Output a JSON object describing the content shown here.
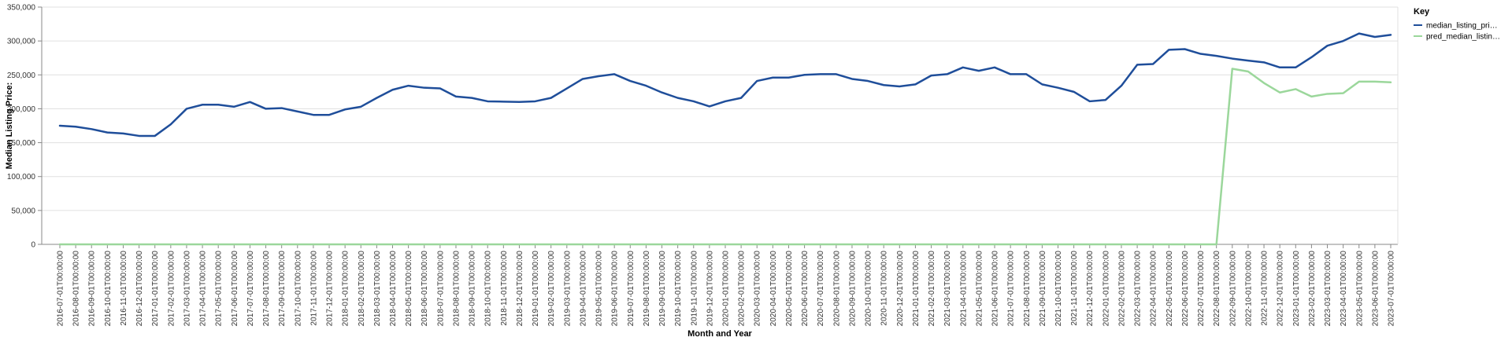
{
  "chart_data": {
    "type": "line",
    "xlabel": "Month and Year",
    "ylabel": "Median Listing Price:",
    "ylim": [
      0,
      350000
    ],
    "yticks": [
      "0",
      "50,000",
      "100,000",
      "150,000",
      "200,000",
      "250,000",
      "300,000",
      "350,000"
    ],
    "ytick_values": [
      0,
      50000,
      100000,
      150000,
      200000,
      250000,
      300000,
      350000
    ],
    "grid": true,
    "legend": {
      "title": "Key",
      "placement": "top-right",
      "entries": [
        "median_listing_pri…",
        "pred_median_listin…"
      ]
    },
    "x": [
      "2016-07-01T00:00:00",
      "2016-08-01T00:00:00",
      "2016-09-01T00:00:00",
      "2016-10-01T00:00:00",
      "2016-11-01T00:00:00",
      "2016-12-01T00:00:00",
      "2017-01-01T00:00:00",
      "2017-02-01T00:00:00",
      "2017-03-01T00:00:00",
      "2017-04-01T00:00:00",
      "2017-05-01T00:00:00",
      "2017-06-01T00:00:00",
      "2017-07-01T00:00:00",
      "2017-08-01T00:00:00",
      "2017-09-01T00:00:00",
      "2017-10-01T00:00:00",
      "2017-11-01T00:00:00",
      "2017-12-01T00:00:00",
      "2018-01-01T00:00:00",
      "2018-02-01T00:00:00",
      "2018-03-01T00:00:00",
      "2018-04-01T00:00:00",
      "2018-05-01T00:00:00",
      "2018-06-01T00:00:00",
      "2018-07-01T00:00:00",
      "2018-08-01T00:00:00",
      "2018-09-01T00:00:00",
      "2018-10-01T00:00:00",
      "2018-11-01T00:00:00",
      "2018-12-01T00:00:00",
      "2019-01-01T00:00:00",
      "2019-02-01T00:00:00",
      "2019-03-01T00:00:00",
      "2019-04-01T00:00:00",
      "2019-05-01T00:00:00",
      "2019-06-01T00:00:00",
      "2019-07-01T00:00:00",
      "2019-08-01T00:00:00",
      "2019-09-01T00:00:00",
      "2019-10-01T00:00:00",
      "2019-11-01T00:00:00",
      "2019-12-01T00:00:00",
      "2020-01-01T00:00:00",
      "2020-02-01T00:00:00",
      "2020-03-01T00:00:00",
      "2020-04-01T00:00:00",
      "2020-05-01T00:00:00",
      "2020-06-01T00:00:00",
      "2020-07-01T00:00:00",
      "2020-08-01T00:00:00",
      "2020-09-01T00:00:00",
      "2020-10-01T00:00:00",
      "2020-11-01T00:00:00",
      "2020-12-01T00:00:00",
      "2021-01-01T00:00:00",
      "2021-02-01T00:00:00",
      "2021-03-01T00:00:00",
      "2021-04-01T00:00:00",
      "2021-05-01T00:00:00",
      "2021-06-01T00:00:00",
      "2021-07-01T00:00:00",
      "2021-08-01T00:00:00",
      "2021-09-01T00:00:00",
      "2021-10-01T00:00:00",
      "2021-11-01T00:00:00",
      "2021-12-01T00:00:00",
      "2022-01-01T00:00:00",
      "2022-02-01T00:00:00",
      "2022-03-01T00:00:00",
      "2022-04-01T00:00:00",
      "2022-05-01T00:00:00",
      "2022-06-01T00:00:00",
      "2022-07-01T00:00:00",
      "2022-08-01T00:00:00",
      "2022-09-01T00:00:00",
      "2022-10-01T00:00:00",
      "2022-11-01T00:00:00",
      "2022-12-01T00:00:00",
      "2023-01-01T00:00:00",
      "2023-02-01T00:00:00",
      "2023-03-01T00:00:00",
      "2023-04-01T00:00:00",
      "2023-05-01T00:00:00",
      "2023-06-01T00:00:00",
      "2023-07-01T00:00:00"
    ],
    "series": [
      {
        "name": "median_listing_pri…",
        "color": "#1f4e9a",
        "values": [
          175000,
          173500,
          170000,
          165000,
          163500,
          160000,
          160000,
          177000,
          200000,
          206000,
          206000,
          203000,
          210000,
          200000,
          201000,
          196000,
          191000,
          191000,
          199000,
          203000,
          216000,
          228000,
          234000,
          231000,
          230000,
          218000,
          216000,
          211000,
          210500,
          210000,
          211000,
          216000,
          230000,
          244000,
          248000,
          251000,
          241000,
          234000,
          224000,
          216000,
          211000,
          203500,
          211000,
          216000,
          241000,
          246000,
          246000,
          250000,
          251000,
          251000,
          244000,
          241000,
          235000,
          233000,
          236000,
          249000,
          251000,
          261000,
          256000,
          261000,
          251000,
          251000,
          236000,
          231000,
          225000,
          211000,
          213000,
          234000,
          265000,
          266000,
          287000,
          288000,
          281000,
          278000,
          274000,
          271000,
          268500,
          261000,
          261000,
          276000,
          293000,
          300000,
          311000,
          306000,
          309000
        ]
      },
      {
        "name": "pred_median_listin…",
        "color": "#9bd79b",
        "values": [
          0,
          0,
          0,
          0,
          0,
          0,
          0,
          0,
          0,
          0,
          0,
          0,
          0,
          0,
          0,
          0,
          0,
          0,
          0,
          0,
          0,
          0,
          0,
          0,
          0,
          0,
          0,
          0,
          0,
          0,
          0,
          0,
          0,
          0,
          0,
          0,
          0,
          0,
          0,
          0,
          0,
          0,
          0,
          0,
          0,
          0,
          0,
          0,
          0,
          0,
          0,
          0,
          0,
          0,
          0,
          0,
          0,
          0,
          0,
          0,
          0,
          0,
          0,
          0,
          0,
          0,
          0,
          0,
          0,
          0,
          0,
          0,
          0,
          0,
          259000,
          255000,
          238000,
          224000,
          229000,
          218000,
          222000,
          223000,
          240000,
          240000,
          239000
        ]
      }
    ]
  }
}
